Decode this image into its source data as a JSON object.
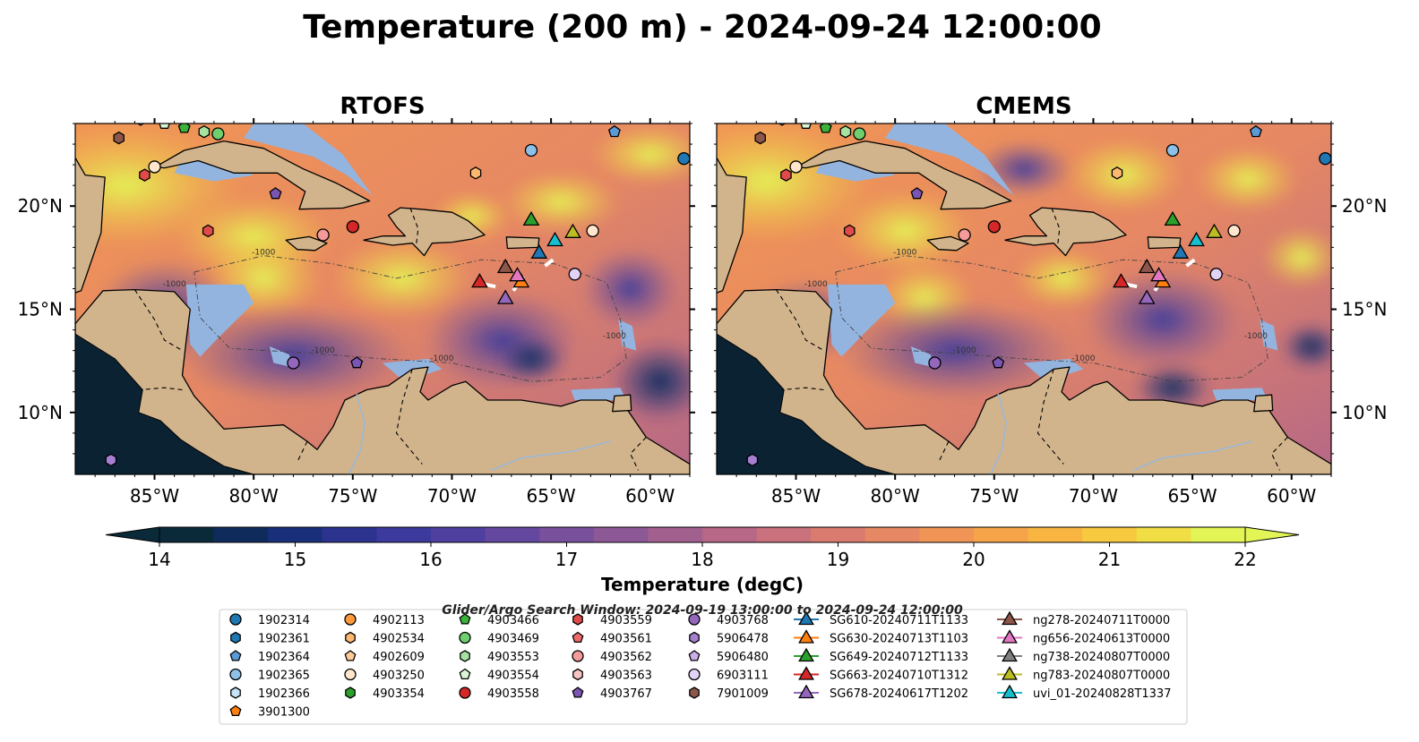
{
  "title": "Temperature (200 m) - 2024-09-24 12:00:00",
  "panels": [
    {
      "title": "RTOFS"
    },
    {
      "title": "CMEMS"
    }
  ],
  "axes": {
    "x_ticks": [
      "85°W",
      "80°W",
      "75°W",
      "70°W",
      "65°W",
      "60°W"
    ],
    "y_ticks": [
      "20°N",
      "15°N",
      "10°N"
    ]
  },
  "colorbar": {
    "label": "Temperature (degC)",
    "ticks": [
      "14",
      "15",
      "16",
      "17",
      "18",
      "19",
      "20",
      "21",
      "22"
    ],
    "colors": [
      "#0a2a3a",
      "#0f2b5c",
      "#1a2f7a",
      "#2b338f",
      "#3c3a9c",
      "#4f3f9f",
      "#64479e",
      "#78509c",
      "#8d5896",
      "#a2608f",
      "#b66886",
      "#c9717c",
      "#d97c6f",
      "#e68864",
      "#f09555",
      "#f6a44a",
      "#f8b542",
      "#f7c93f",
      "#f1de45",
      "#e3f556"
    ],
    "extend": "both"
  },
  "search_window": "Glider/Argo Search Window: 2024-09-19 13:00:00 to 2024-09-24 12:00:00",
  "chart_data": [
    {
      "type": "heatmap",
      "title": "RTOFS",
      "variable": "Temperature (200 m)",
      "units": "degC",
      "color_range": [
        14,
        22
      ],
      "xlim": [
        -89,
        -58
      ],
      "ylim": [
        7,
        24
      ],
      "x_ticks": [
        -85,
        -80,
        -75,
        -70,
        -65,
        -60
      ],
      "y_ticks": [
        20,
        15,
        10
      ],
      "contour_labels": [
        "-1000"
      ]
    },
    {
      "type": "heatmap",
      "title": "CMEMS",
      "variable": "Temperature (200 m)",
      "units": "degC",
      "color_range": [
        14,
        22
      ],
      "xlim": [
        -89,
        -58
      ],
      "ylim": [
        7,
        24
      ],
      "x_ticks": [
        -85,
        -80,
        -75,
        -70,
        -65,
        -60
      ],
      "y_ticks": [
        20,
        15,
        10
      ],
      "contour_labels": [
        "-1000"
      ]
    }
  ],
  "legend": {
    "columns": [
      [
        {
          "label": "1902314",
          "marker": "circle",
          "color": "#1f77b4"
        },
        {
          "label": "1902361",
          "marker": "hexagon",
          "color": "#1f77b4"
        },
        {
          "label": "1902364",
          "marker": "pentagon",
          "color": "#5b9bd5"
        },
        {
          "label": "1902365",
          "marker": "circle",
          "color": "#8ec1e8"
        },
        {
          "label": "1902366",
          "marker": "hexagon",
          "color": "#c6e3f7"
        },
        {
          "label": "3901300",
          "marker": "pentagon",
          "color": "#ff7f0e"
        }
      ],
      [
        {
          "label": "4902113",
          "marker": "circle",
          "color": "#ff9a3c"
        },
        {
          "label": "4902534",
          "marker": "hexagon",
          "color": "#ffb870"
        },
        {
          "label": "4902609",
          "marker": "pentagon",
          "color": "#ffcc99"
        },
        {
          "label": "4903250",
          "marker": "circle",
          "color": "#ffe6cc"
        },
        {
          "label": "4903354",
          "marker": "hexagon",
          "color": "#2ca02c"
        }
      ],
      [
        {
          "label": "4903466",
          "marker": "pentagon",
          "color": "#3bb33b"
        },
        {
          "label": "4903469",
          "marker": "circle",
          "color": "#6fcf6f"
        },
        {
          "label": "4903553",
          "marker": "hexagon",
          "color": "#a6e3a1"
        },
        {
          "label": "4903554",
          "marker": "pentagon",
          "color": "#d9f5d5"
        },
        {
          "label": "4903558",
          "marker": "circle",
          "color": "#d62728"
        }
      ],
      [
        {
          "label": "4903559",
          "marker": "hexagon",
          "color": "#e04a4a"
        },
        {
          "label": "4903561",
          "marker": "pentagon",
          "color": "#ee6b6b"
        },
        {
          "label": "4903562",
          "marker": "circle",
          "color": "#f39a9a"
        },
        {
          "label": "4903563",
          "marker": "hexagon",
          "color": "#f8c4c4"
        },
        {
          "label": "4903767",
          "marker": "pentagon",
          "color": "#7b55b3"
        }
      ],
      [
        {
          "label": "4903768",
          "marker": "circle",
          "color": "#9467bd"
        },
        {
          "label": "5906478",
          "marker": "hexagon",
          "color": "#a57fd0"
        },
        {
          "label": "5906480",
          "marker": "pentagon",
          "color": "#c9b0e8"
        },
        {
          "label": "6903111",
          "marker": "circle",
          "color": "#e3d2f7"
        },
        {
          "label": "7901009",
          "marker": "hexagon",
          "color": "#8c564b"
        }
      ],
      [
        {
          "label": "SG610-20240711T1133",
          "marker": "triangle",
          "color": "#1f77b4"
        },
        {
          "label": "SG630-20240713T1103",
          "marker": "triangle",
          "color": "#ff7f0e"
        },
        {
          "label": "SG649-20240712T1133",
          "marker": "triangle",
          "color": "#2ca02c"
        },
        {
          "label": "SG663-20240710T1312",
          "marker": "triangle",
          "color": "#d62728"
        },
        {
          "label": "SG678-20240617T1202",
          "marker": "triangle",
          "color": "#9467bd"
        }
      ],
      [
        {
          "label": "ng278-20240711T0000",
          "marker": "triangle",
          "color": "#8c564b"
        },
        {
          "label": "ng656-20240613T0000",
          "marker": "triangle",
          "color": "#e377c2"
        },
        {
          "label": "ng738-20240807T0000",
          "marker": "triangle",
          "color": "#7f7f7f"
        },
        {
          "label": "ng783-20240807T0000",
          "marker": "triangle",
          "color": "#bcbd22"
        },
        {
          "label": "uvi_01-20240828T1337",
          "marker": "triangle",
          "color": "#17becf"
        }
      ]
    ]
  }
}
